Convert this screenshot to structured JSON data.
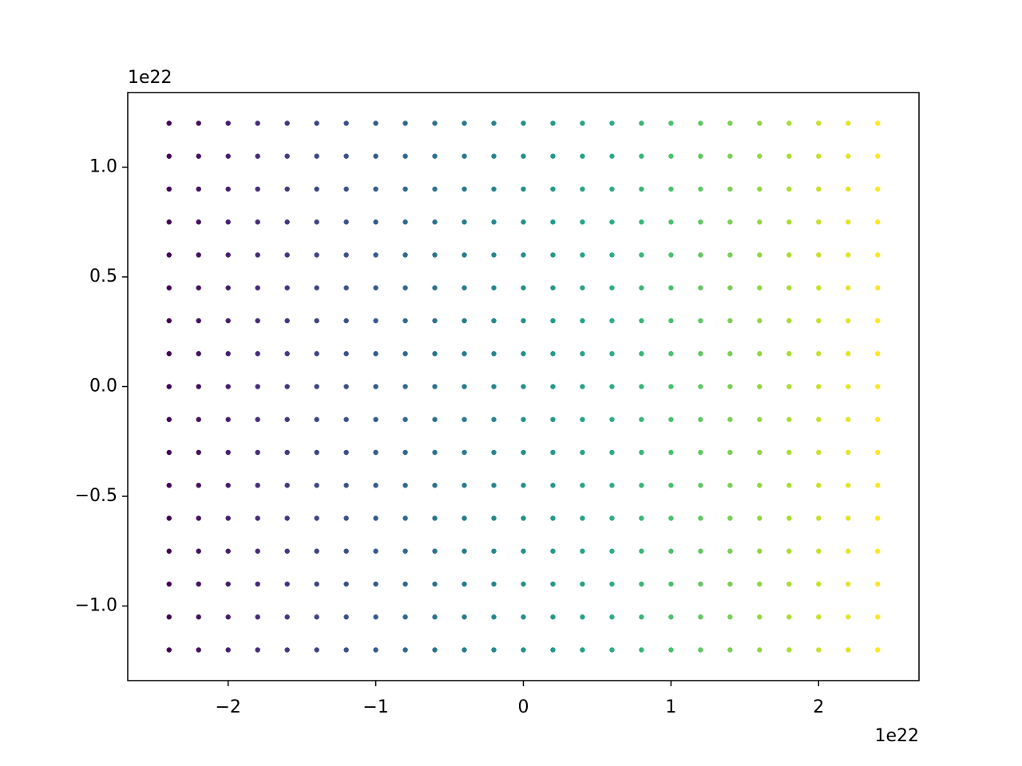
{
  "chart_data": {
    "type": "scatter",
    "colormap": "viridis",
    "x_offset_text": "1e22",
    "y_offset_text": "1e22",
    "xlim": [
      -2.68,
      2.68
    ],
    "ylim": [
      -1.34,
      1.34
    ],
    "xticks": [
      {
        "value": -2,
        "label": "−2"
      },
      {
        "value": -1,
        "label": "−1"
      },
      0,
      1,
      2
    ],
    "yticks": [
      {
        "value": -1.0,
        "label": "−1.0"
      },
      {
        "value": -0.5,
        "label": "−0.5"
      },
      {
        "value": 0.0,
        "label": "0.0"
      },
      {
        "value": 0.5,
        "label": "0.5"
      },
      {
        "value": 1.0,
        "label": "1.0"
      }
    ],
    "x": [
      -2.4,
      -2.4,
      -2.4,
      -2.4,
      -2.4,
      -2.4,
      -2.4,
      -2.4,
      -2.4,
      -2.4,
      -2.4,
      -2.4,
      -2.4,
      -2.4,
      -2.4,
      -2.4,
      -2.4,
      -2.2,
      -2.2,
      -2.2,
      -2.2,
      -2.2,
      -2.2,
      -2.2,
      -2.2,
      -2.2,
      -2.2,
      -2.2,
      -2.2,
      -2.2,
      -2.2,
      -2.2,
      -2.2,
      -2.2,
      -2.0,
      -2.0,
      -2.0,
      -2.0,
      -2.0,
      -2.0,
      -2.0,
      -2.0,
      -2.0,
      -2.0,
      -2.0,
      -2.0,
      -2.0,
      -2.0,
      -2.0,
      -2.0,
      -2.0,
      -1.8,
      -1.8,
      -1.8,
      -1.8,
      -1.8,
      -1.8,
      -1.8,
      -1.8,
      -1.8,
      -1.8,
      -1.8,
      -1.8,
      -1.8,
      -1.8,
      -1.8,
      -1.8,
      -1.8,
      -1.6,
      -1.6,
      -1.6,
      -1.6,
      -1.6,
      -1.6,
      -1.6,
      -1.6,
      -1.6,
      -1.6,
      -1.6,
      -1.6,
      -1.6,
      -1.6,
      -1.6,
      -1.6,
      -1.6,
      -1.4,
      -1.4,
      -1.4,
      -1.4,
      -1.4,
      -1.4,
      -1.4,
      -1.4,
      -1.4,
      -1.4,
      -1.4,
      -1.4,
      -1.4,
      -1.4,
      -1.4,
      -1.4,
      -1.4,
      -1.2,
      -1.2,
      -1.2,
      -1.2,
      -1.2,
      -1.2,
      -1.2,
      -1.2,
      -1.2,
      -1.2,
      -1.2,
      -1.2,
      -1.2,
      -1.2,
      -1.2,
      -1.2,
      -1.2,
      -1.0,
      -1.0,
      -1.0,
      -1.0,
      -1.0,
      -1.0,
      -1.0,
      -1.0,
      -1.0,
      -1.0,
      -1.0,
      -1.0,
      -1.0,
      -1.0,
      -1.0,
      -1.0,
      -1.0,
      -0.8,
      -0.8,
      -0.8,
      -0.8,
      -0.8,
      -0.8,
      -0.8,
      -0.8,
      -0.8,
      -0.8,
      -0.8,
      -0.8,
      -0.8,
      -0.8,
      -0.8,
      -0.8,
      -0.8,
      -0.6,
      -0.6,
      -0.6,
      -0.6,
      -0.6,
      -0.6,
      -0.6,
      -0.6,
      -0.6,
      -0.6,
      -0.6,
      -0.6,
      -0.6,
      -0.6,
      -0.6,
      -0.6,
      -0.6,
      -0.4,
      -0.4,
      -0.4,
      -0.4,
      -0.4,
      -0.4,
      -0.4,
      -0.4,
      -0.4,
      -0.4,
      -0.4,
      -0.4,
      -0.4,
      -0.4,
      -0.4,
      -0.4,
      -0.4,
      -0.2,
      -0.2,
      -0.2,
      -0.2,
      -0.2,
      -0.2,
      -0.2,
      -0.2,
      -0.2,
      -0.2,
      -0.2,
      -0.2,
      -0.2,
      -0.2,
      -0.2,
      -0.2,
      -0.2,
      0,
      0,
      0,
      0,
      0,
      0,
      0,
      0,
      0,
      0,
      0,
      0,
      0,
      0,
      0,
      0,
      0,
      0.2,
      0.2,
      0.2,
      0.2,
      0.2,
      0.2,
      0.2,
      0.2,
      0.2,
      0.2,
      0.2,
      0.2,
      0.2,
      0.2,
      0.2,
      0.2,
      0.2,
      0.4,
      0.4,
      0.4,
      0.4,
      0.4,
      0.4,
      0.4,
      0.4,
      0.4,
      0.4,
      0.4,
      0.4,
      0.4,
      0.4,
      0.4,
      0.4,
      0.4,
      0.6,
      0.6,
      0.6,
      0.6,
      0.6,
      0.6,
      0.6,
      0.6,
      0.6,
      0.6,
      0.6,
      0.6,
      0.6,
      0.6,
      0.6,
      0.6,
      0.6,
      0.8,
      0.8,
      0.8,
      0.8,
      0.8,
      0.8,
      0.8,
      0.8,
      0.8,
      0.8,
      0.8,
      0.8,
      0.8,
      0.8,
      0.8,
      0.8,
      0.8,
      1.0,
      1.0,
      1.0,
      1.0,
      1.0,
      1.0,
      1.0,
      1.0,
      1.0,
      1.0,
      1.0,
      1.0,
      1.0,
      1.0,
      1.0,
      1.0,
      1.0,
      1.2,
      1.2,
      1.2,
      1.2,
      1.2,
      1.2,
      1.2,
      1.2,
      1.2,
      1.2,
      1.2,
      1.2,
      1.2,
      1.2,
      1.2,
      1.2,
      1.2,
      1.4,
      1.4,
      1.4,
      1.4,
      1.4,
      1.4,
      1.4,
      1.4,
      1.4,
      1.4,
      1.4,
      1.4,
      1.4,
      1.4,
      1.4,
      1.4,
      1.4,
      1.6,
      1.6,
      1.6,
      1.6,
      1.6,
      1.6,
      1.6,
      1.6,
      1.6,
      1.6,
      1.6,
      1.6,
      1.6,
      1.6,
      1.6,
      1.6,
      1.6,
      1.8,
      1.8,
      1.8,
      1.8,
      1.8,
      1.8,
      1.8,
      1.8,
      1.8,
      1.8,
      1.8,
      1.8,
      1.8,
      1.8,
      1.8,
      1.8,
      1.8,
      2.0,
      2.0,
      2.0,
      2.0,
      2.0,
      2.0,
      2.0,
      2.0,
      2.0,
      2.0,
      2.0,
      2.0,
      2.0,
      2.0,
      2.0,
      2.0,
      2.0,
      2.2,
      2.2,
      2.2,
      2.2,
      2.2,
      2.2,
      2.2,
      2.2,
      2.2,
      2.2,
      2.2,
      2.2,
      2.2,
      2.2,
      2.2,
      2.2,
      2.2,
      2.4,
      2.4,
      2.4,
      2.4,
      2.4,
      2.4,
      2.4,
      2.4,
      2.4,
      2.4,
      2.4,
      2.4,
      2.4,
      2.4,
      2.4,
      2.4,
      2.4
    ],
    "y": [
      -1.2,
      -1.05,
      -0.9,
      -0.75,
      -0.6,
      -0.45,
      -0.3,
      -0.15,
      0,
      0.15,
      0.3,
      0.45,
      0.6,
      0.75,
      0.9,
      1.05,
      1.2,
      -1.2,
      -1.05,
      -0.9,
      -0.75,
      -0.6,
      -0.45,
      -0.3,
      -0.15,
      0,
      0.15,
      0.3,
      0.45,
      0.6,
      0.75,
      0.9,
      1.05,
      1.2,
      -1.2,
      -1.05,
      -0.9,
      -0.75,
      -0.6,
      -0.45,
      -0.3,
      -0.15,
      0,
      0.15,
      0.3,
      0.45,
      0.6,
      0.75,
      0.9,
      1.05,
      1.2,
      -1.2,
      -1.05,
      -0.9,
      -0.75,
      -0.6,
      -0.45,
      -0.3,
      -0.15,
      0,
      0.15,
      0.3,
      0.45,
      0.6,
      0.75,
      0.9,
      1.05,
      1.2,
      -1.2,
      -1.05,
      -0.9,
      -0.75,
      -0.6,
      -0.45,
      -0.3,
      -0.15,
      0,
      0.15,
      0.3,
      0.45,
      0.6,
      0.75,
      0.9,
      1.05,
      1.2,
      -1.2,
      -1.05,
      -0.9,
      -0.75,
      -0.6,
      -0.45,
      -0.3,
      -0.15,
      0,
      0.15,
      0.3,
      0.45,
      0.6,
      0.75,
      0.9,
      1.05,
      1.2,
      -1.2,
      -1.05,
      -0.9,
      -0.75,
      -0.6,
      -0.45,
      -0.3,
      -0.15,
      0,
      0.15,
      0.3,
      0.45,
      0.6,
      0.75,
      0.9,
      1.05,
      1.2,
      -1.2,
      -1.05,
      -0.9,
      -0.75,
      -0.6,
      -0.45,
      -0.3,
      -0.15,
      0,
      0.15,
      0.3,
      0.45,
      0.6,
      0.75,
      0.9,
      1.05,
      1.2,
      -1.2,
      -1.05,
      -0.9,
      -0.75,
      -0.6,
      -0.45,
      -0.3,
      -0.15,
      0,
      0.15,
      0.3,
      0.45,
      0.6,
      0.75,
      0.9,
      1.05,
      1.2,
      -1.2,
      -1.05,
      -0.9,
      -0.75,
      -0.6,
      -0.45,
      -0.3,
      -0.15,
      0,
      0.15,
      0.3,
      0.45,
      0.6,
      0.75,
      0.9,
      1.05,
      1.2,
      -1.2,
      -1.05,
      -0.9,
      -0.75,
      -0.6,
      -0.45,
      -0.3,
      -0.15,
      0,
      0.15,
      0.3,
      0.45,
      0.6,
      0.75,
      0.9,
      1.05,
      1.2,
      -1.2,
      -1.05,
      -0.9,
      -0.75,
      -0.6,
      -0.45,
      -0.3,
      -0.15,
      0,
      0.15,
      0.3,
      0.45,
      0.6,
      0.75,
      0.9,
      1.05,
      1.2,
      -1.2,
      -1.05,
      -0.9,
      -0.75,
      -0.6,
      -0.45,
      -0.3,
      -0.15,
      0,
      0.15,
      0.3,
      0.45,
      0.6,
      0.75,
      0.9,
      1.05,
      1.2,
      -1.2,
      -1.05,
      -0.9,
      -0.75,
      -0.6,
      -0.45,
      -0.3,
      -0.15,
      0,
      0.15,
      0.3,
      0.45,
      0.6,
      0.75,
      0.9,
      1.05,
      1.2,
      -1.2,
      -1.05,
      -0.9,
      -0.75,
      -0.6,
      -0.45,
      -0.3,
      -0.15,
      0,
      0.15,
      0.3,
      0.45,
      0.6,
      0.75,
      0.9,
      1.05,
      1.2,
      -1.2,
      -1.05,
      -0.9,
      -0.75,
      -0.6,
      -0.45,
      -0.3,
      -0.15,
      0,
      0.15,
      0.3,
      0.45,
      0.6,
      0.75,
      0.9,
      1.05,
      1.2,
      -1.2,
      -1.05,
      -0.9,
      -0.75,
      -0.6,
      -0.45,
      -0.3,
      -0.15,
      0,
      0.15,
      0.3,
      0.45,
      0.6,
      0.75,
      0.9,
      1.05,
      1.2,
      -1.2,
      -1.05,
      -0.9,
      -0.75,
      -0.6,
      -0.45,
      -0.3,
      -0.15,
      0,
      0.15,
      0.3,
      0.45,
      0.6,
      0.75,
      0.9,
      1.05,
      1.2,
      -1.2,
      -1.05,
      -0.9,
      -0.75,
      -0.6,
      -0.45,
      -0.3,
      -0.15,
      0,
      0.15,
      0.3,
      0.45,
      0.6,
      0.75,
      0.9,
      1.05,
      1.2,
      -1.2,
      -1.05,
      -0.9,
      -0.75,
      -0.6,
      -0.45,
      -0.3,
      -0.15,
      0,
      0.15,
      0.3,
      0.45,
      0.6,
      0.75,
      0.9,
      1.05,
      1.2,
      -1.2,
      -1.05,
      -0.9,
      -0.75,
      -0.6,
      -0.45,
      -0.3,
      -0.15,
      0,
      0.15,
      0.3,
      0.45,
      0.6,
      0.75,
      0.9,
      1.05,
      1.2,
      -1.2,
      -1.05,
      -0.9,
      -0.75,
      -0.6,
      -0.45,
      -0.3,
      -0.15,
      0,
      0.15,
      0.3,
      0.45,
      0.6,
      0.75,
      0.9,
      1.05,
      1.2,
      -1.2,
      -1.05,
      -0.9,
      -0.75,
      -0.6,
      -0.45,
      -0.3,
      -0.15,
      0,
      0.15,
      0.3,
      0.45,
      0.6,
      0.75,
      0.9,
      1.05,
      1.2,
      -1.2,
      -1.05,
      -0.9,
      -0.75,
      -0.6,
      -0.45,
      -0.3,
      -0.15,
      0,
      0.15,
      0.3,
      0.45,
      0.6,
      0.75,
      0.9,
      1.05,
      1.2,
      -1.2,
      -1.05,
      -0.9,
      -0.75,
      -0.6,
      -0.45,
      -0.3,
      -0.15,
      0,
      0.15,
      0.3,
      0.45,
      0.6,
      0.75,
      0.9,
      1.05,
      1.2
    ]
  }
}
